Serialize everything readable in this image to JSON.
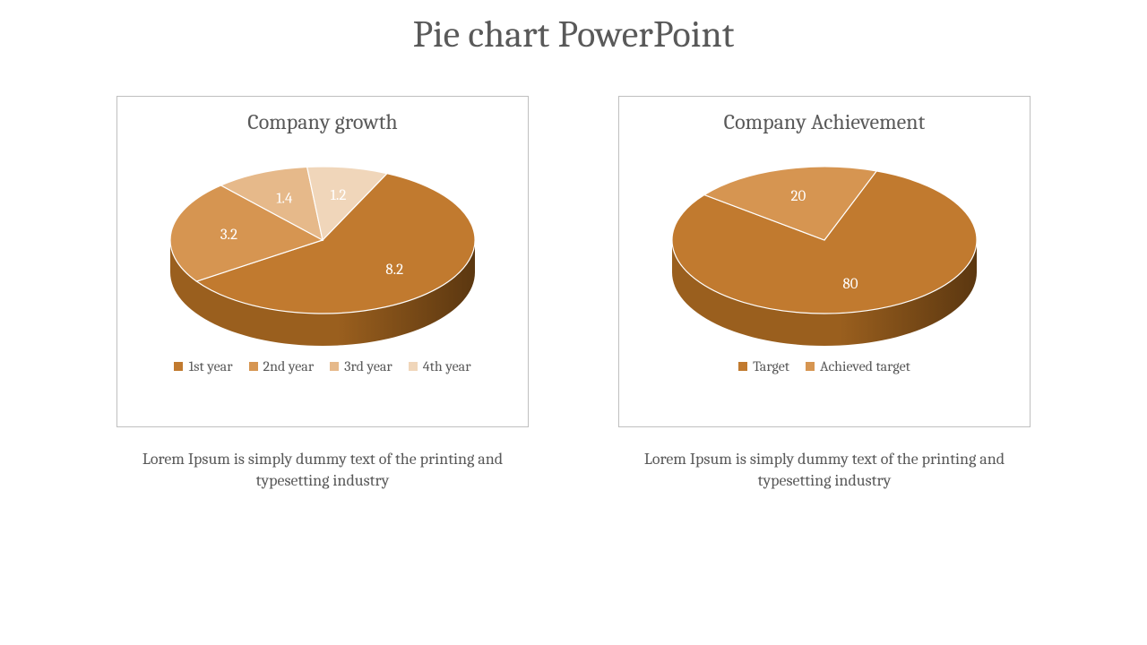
{
  "title": "Pie chart PowerPoint",
  "title_fontsize": 42,
  "title_color": "#595959",
  "background_color": "#ffffff",
  "charts": [
    {
      "type": "pie3d",
      "title": "Company growth",
      "title_fontsize": 24,
      "caption": "Lorem Ipsum is simply dummy text of the printing and typesetting industry",
      "box_border_color": "#bfbfbf",
      "rim_color_light": "#9a5f1e",
      "rim_color_dark": "#5b3710",
      "data_label_color": "#ffffff",
      "data_label_fontsize": 17,
      "slice_separator_color": "#ffffff",
      "start_angle_deg": -65,
      "slices": [
        {
          "label": "1st year",
          "value": 8.2,
          "color": "#c17a2f"
        },
        {
          "label": "2nd year",
          "value": 3.2,
          "color": "#d69551"
        },
        {
          "label": "3rd year",
          "value": 1.4,
          "color": "#e6b98a"
        },
        {
          "label": "4th year",
          "value": 1.2,
          "color": "#f0d6ba"
        }
      ]
    },
    {
      "type": "pie3d",
      "title": "Company Achievement",
      "title_fontsize": 24,
      "caption": "Lorem Ipsum is simply dummy text of the printing and typesetting industry",
      "box_border_color": "#bfbfbf",
      "rim_color_light": "#9a5f1e",
      "rim_color_dark": "#5b3710",
      "data_label_color": "#ffffff",
      "data_label_fontsize": 17,
      "slice_separator_color": "#ffffff",
      "start_angle_deg": -70,
      "slices": [
        {
          "label": "Target",
          "value": 80,
          "color": "#c17a2f"
        },
        {
          "label": "Achieved target",
          "value": 20,
          "color": "#d69551"
        }
      ]
    }
  ]
}
